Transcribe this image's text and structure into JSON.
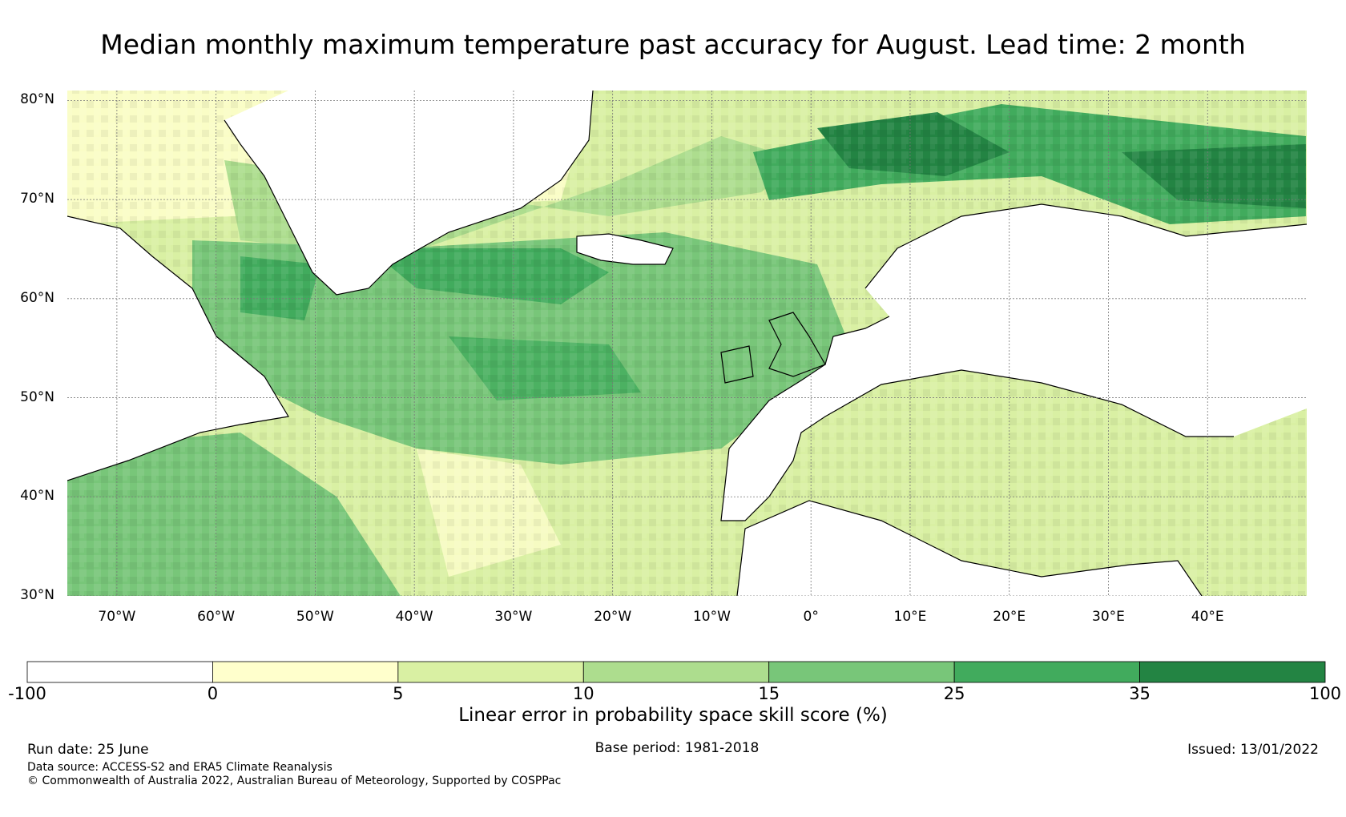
{
  "title": "Median monthly maximum temperature past accuracy for August. Lead time: 2 month",
  "map": {
    "lat_labels": [
      "80°N",
      "70°N",
      "60°N",
      "50°N",
      "40°N",
      "30°N"
    ],
    "lon_labels": [
      "70°W",
      "60°W",
      "50°W",
      "40°W",
      "30°W",
      "20°W",
      "10°W",
      "0°",
      "10°E",
      "20°E",
      "30°E",
      "40°E"
    ],
    "lat_range": [
      30,
      81
    ],
    "lon_range": [
      -75,
      50
    ],
    "land_color": "#ffffff",
    "coastline_color": "#000000"
  },
  "colorbar": {
    "title": "Linear error in probability space skill score (%)",
    "tick_labels": [
      "-100",
      "0",
      "5",
      "10",
      "15",
      "25",
      "35",
      "100"
    ],
    "bins": [
      {
        "from": -100,
        "to": 0,
        "color": "#ffffff"
      },
      {
        "from": 0,
        "to": 5,
        "color": "#ffffcc"
      },
      {
        "from": 5,
        "to": 10,
        "color": "#d9f0a3"
      },
      {
        "from": 10,
        "to": 15,
        "color": "#addd8e"
      },
      {
        "from": 15,
        "to": 25,
        "color": "#78c679"
      },
      {
        "from": 25,
        "to": 35,
        "color": "#41ab5d"
      },
      {
        "from": 35,
        "to": 100,
        "color": "#238443"
      }
    ]
  },
  "footer": {
    "run_date": "Run date: 25 June",
    "base_period": "Base period: 1981-2018",
    "issued": "Issued: 13/01/2022",
    "data_source": "Data source: ACCESS-S2 and ERA5 Climate Reanalysis",
    "copyright": "© Commonwealth of Australia 2022, Australian Bureau of Meteorology, Supported by COSPPac"
  }
}
